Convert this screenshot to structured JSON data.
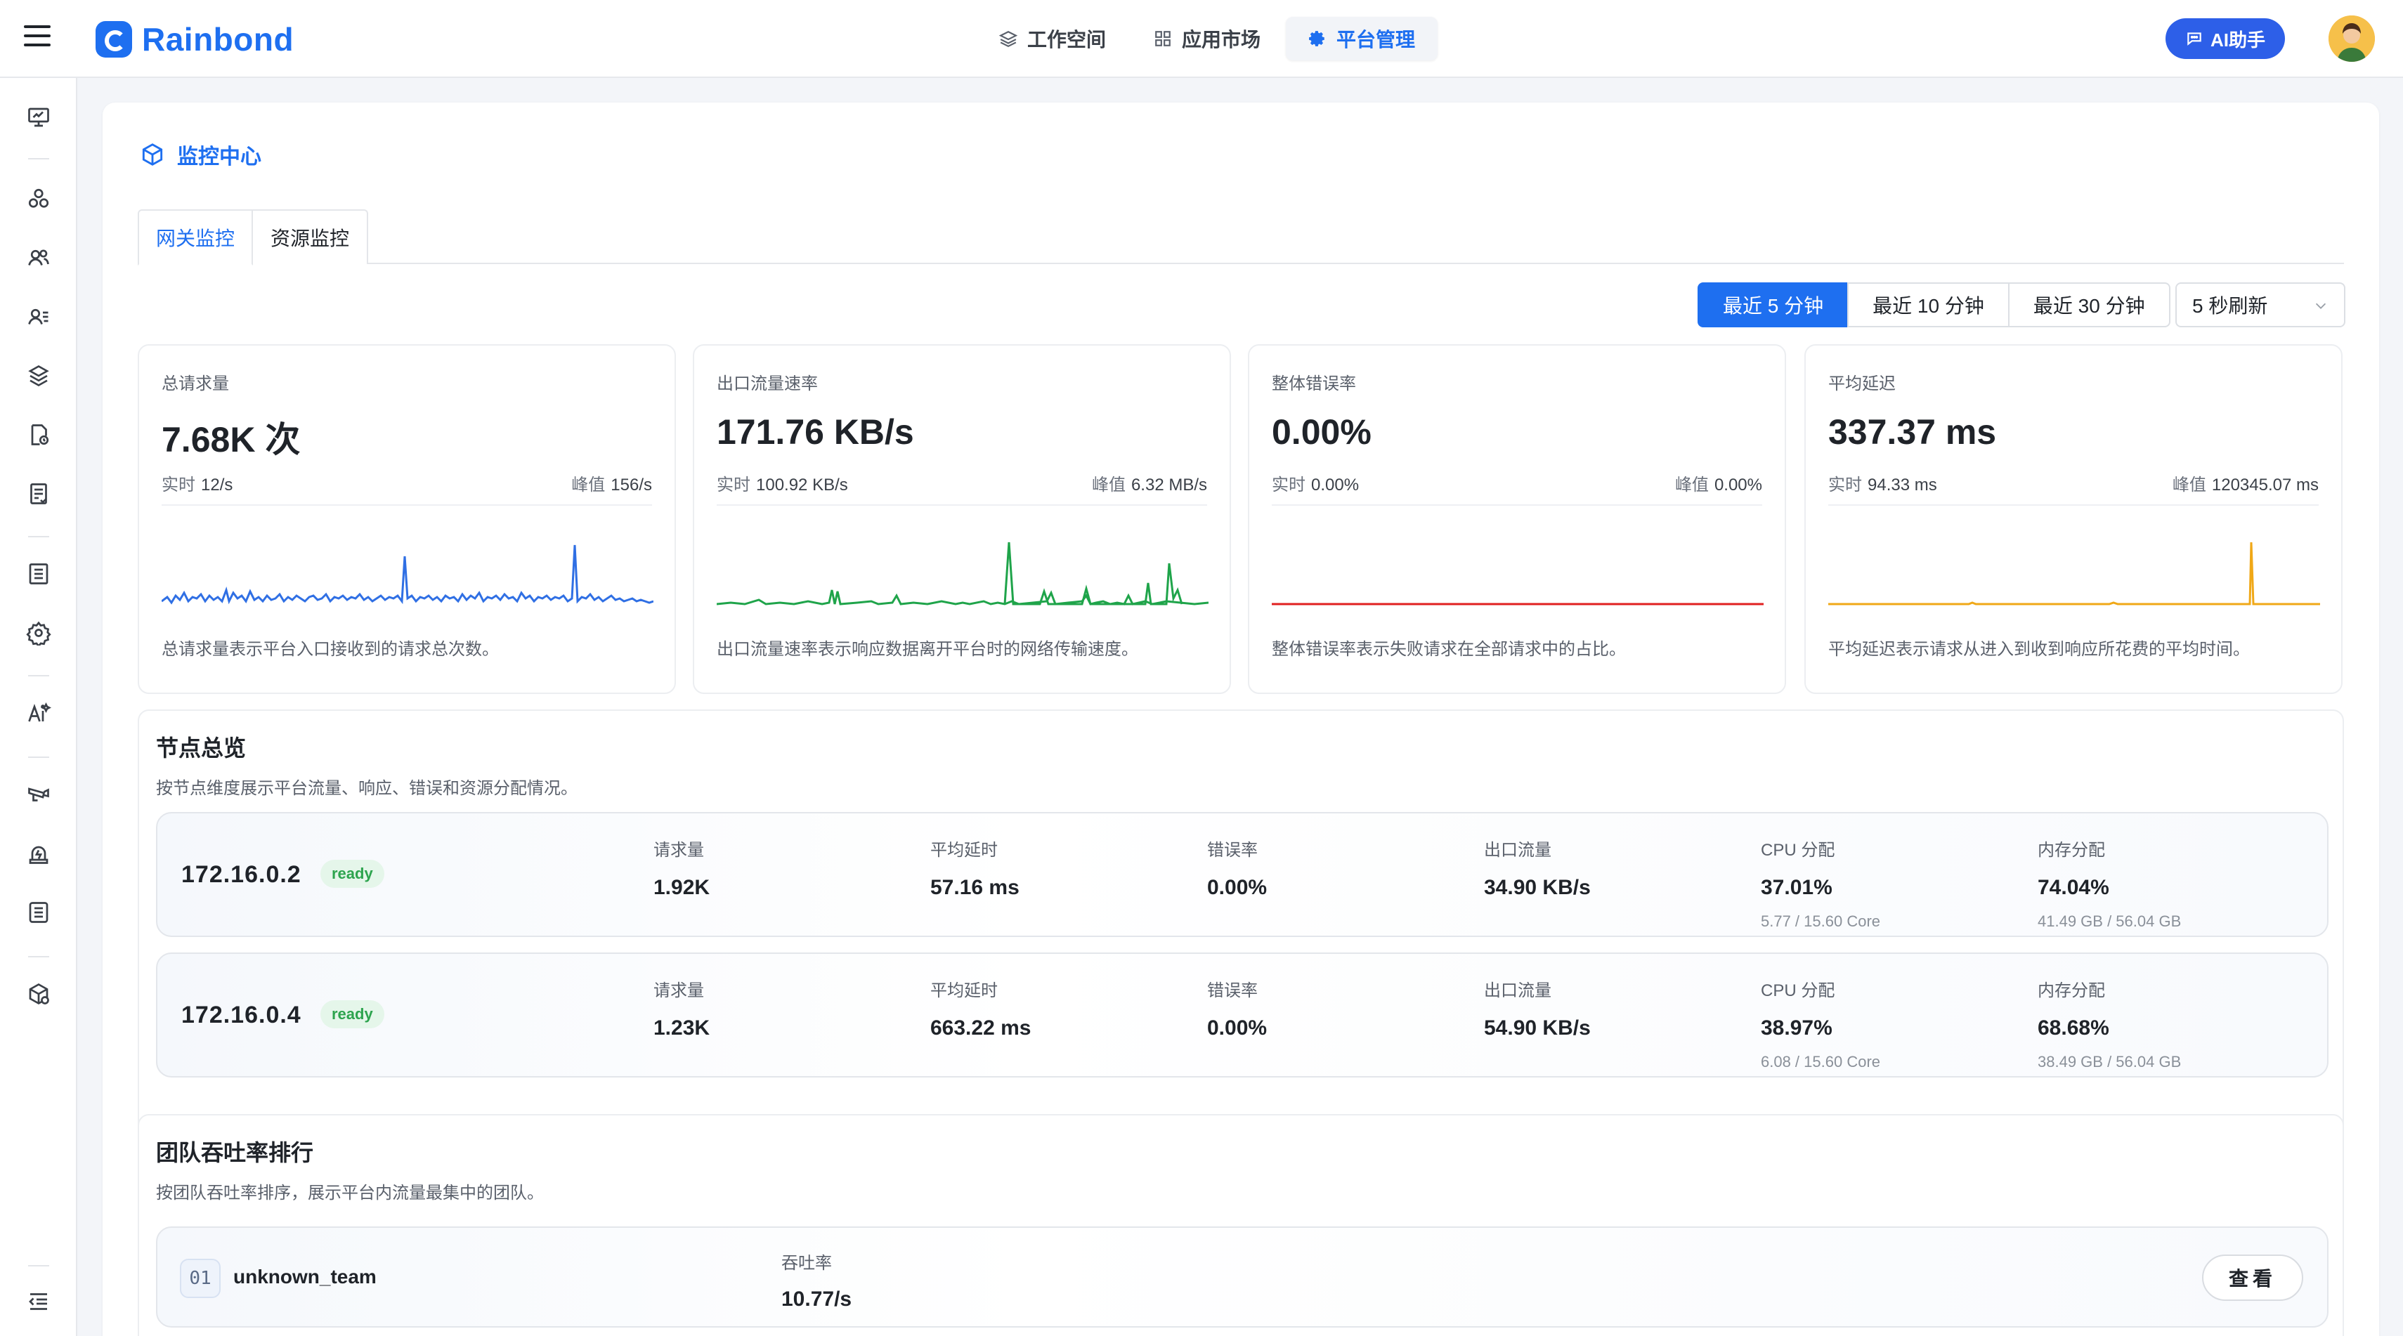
{
  "header": {
    "logo_text": "Rainbond",
    "nav": [
      {
        "label": "工作空间",
        "icon": "layers-icon"
      },
      {
        "label": "应用市场",
        "icon": "grid-icon"
      },
      {
        "label": "平台管理",
        "icon": "gear-icon",
        "active": true
      }
    ],
    "ai_button": "AI助手"
  },
  "sidebar": {
    "icons": [
      "monitor-icon",
      "cluster-icon",
      "users-icon",
      "contacts-icon",
      "package-icon",
      "report-icon",
      "document-icon",
      "list-icon",
      "settings-icon",
      "ai-icon",
      "camera-icon",
      "alarm-icon",
      "log-icon",
      "plugin-icon",
      "collapse-icon"
    ]
  },
  "page": {
    "title": "监控中心",
    "tabs": [
      "网关监控",
      "资源监控"
    ],
    "active_tab": 0,
    "time_ranges": [
      "最近 5 分钟",
      "最近 10 分钟",
      "最近 30 分钟"
    ],
    "active_range": 0,
    "refresh": "5 秒刷新"
  },
  "metrics": [
    {
      "label": "总请求量",
      "value": "7.68K 次",
      "realtime_label": "实时",
      "realtime": "12/s",
      "peak_label": "峰值",
      "peak": "156/s",
      "desc": "总请求量表示平台入口接收到的请求总次数。",
      "color": "#2f6fe4"
    },
    {
      "label": "出口流量速率",
      "value": "171.76 KB/s",
      "realtime_label": "实时",
      "realtime": "100.92 KB/s",
      "peak_label": "峰值",
      "peak": "6.32 MB/s",
      "desc": "出口流量速率表示响应数据离开平台时的网络传输速度。",
      "color": "#1fa44a"
    },
    {
      "label": "整体错误率",
      "value": "0.00%",
      "realtime_label": "实时",
      "realtime": "0.00%",
      "peak_label": "峰值",
      "peak": "0.00%",
      "desc": "整体错误率表示失败请求在全部请求中的占比。",
      "color": "#e02020"
    },
    {
      "label": "平均延迟",
      "value": "337.37 ms",
      "realtime_label": "实时",
      "realtime": "94.33 ms",
      "peak_label": "峰值",
      "peak": "120345.07 ms",
      "desc": "平均延迟表示请求从进入到收到响应所花费的平均时间。",
      "color": "#f0a817"
    }
  ],
  "nodes": {
    "title": "节点总览",
    "subtitle": "按节点维度展示平台流量、响应、错误和资源分配情况。",
    "labels": {
      "requests": "请求量",
      "latency": "平均延时",
      "error": "错误率",
      "egress": "出口流量",
      "cpu": "CPU 分配",
      "mem": "内存分配"
    },
    "items": [
      {
        "ip": "172.16.0.2",
        "status": "ready",
        "requests": "1.92K",
        "latency": "57.16 ms",
        "error": "0.00%",
        "egress": "34.90 KB/s",
        "cpu": "37.01%",
        "cpu_detail": "5.77 / 15.60 Core",
        "mem": "74.04%",
        "mem_detail": "41.49 GB / 56.04 GB"
      },
      {
        "ip": "172.16.0.4",
        "status": "ready",
        "requests": "1.23K",
        "latency": "663.22 ms",
        "error": "0.00%",
        "egress": "54.90 KB/s",
        "cpu": "38.97%",
        "cpu_detail": "6.08 / 15.60 Core",
        "mem": "68.68%",
        "mem_detail": "38.49 GB / 56.04 GB"
      }
    ]
  },
  "teams": {
    "title": "团队吞吐率排行",
    "subtitle": "按团队吞吐率排序，展示平台内流量最集中的团队。",
    "items": [
      {
        "rank": "01",
        "name": "unknown_team",
        "stat_label": "吞吐率",
        "stat": "10.77/s",
        "button": "查看"
      }
    ]
  }
}
